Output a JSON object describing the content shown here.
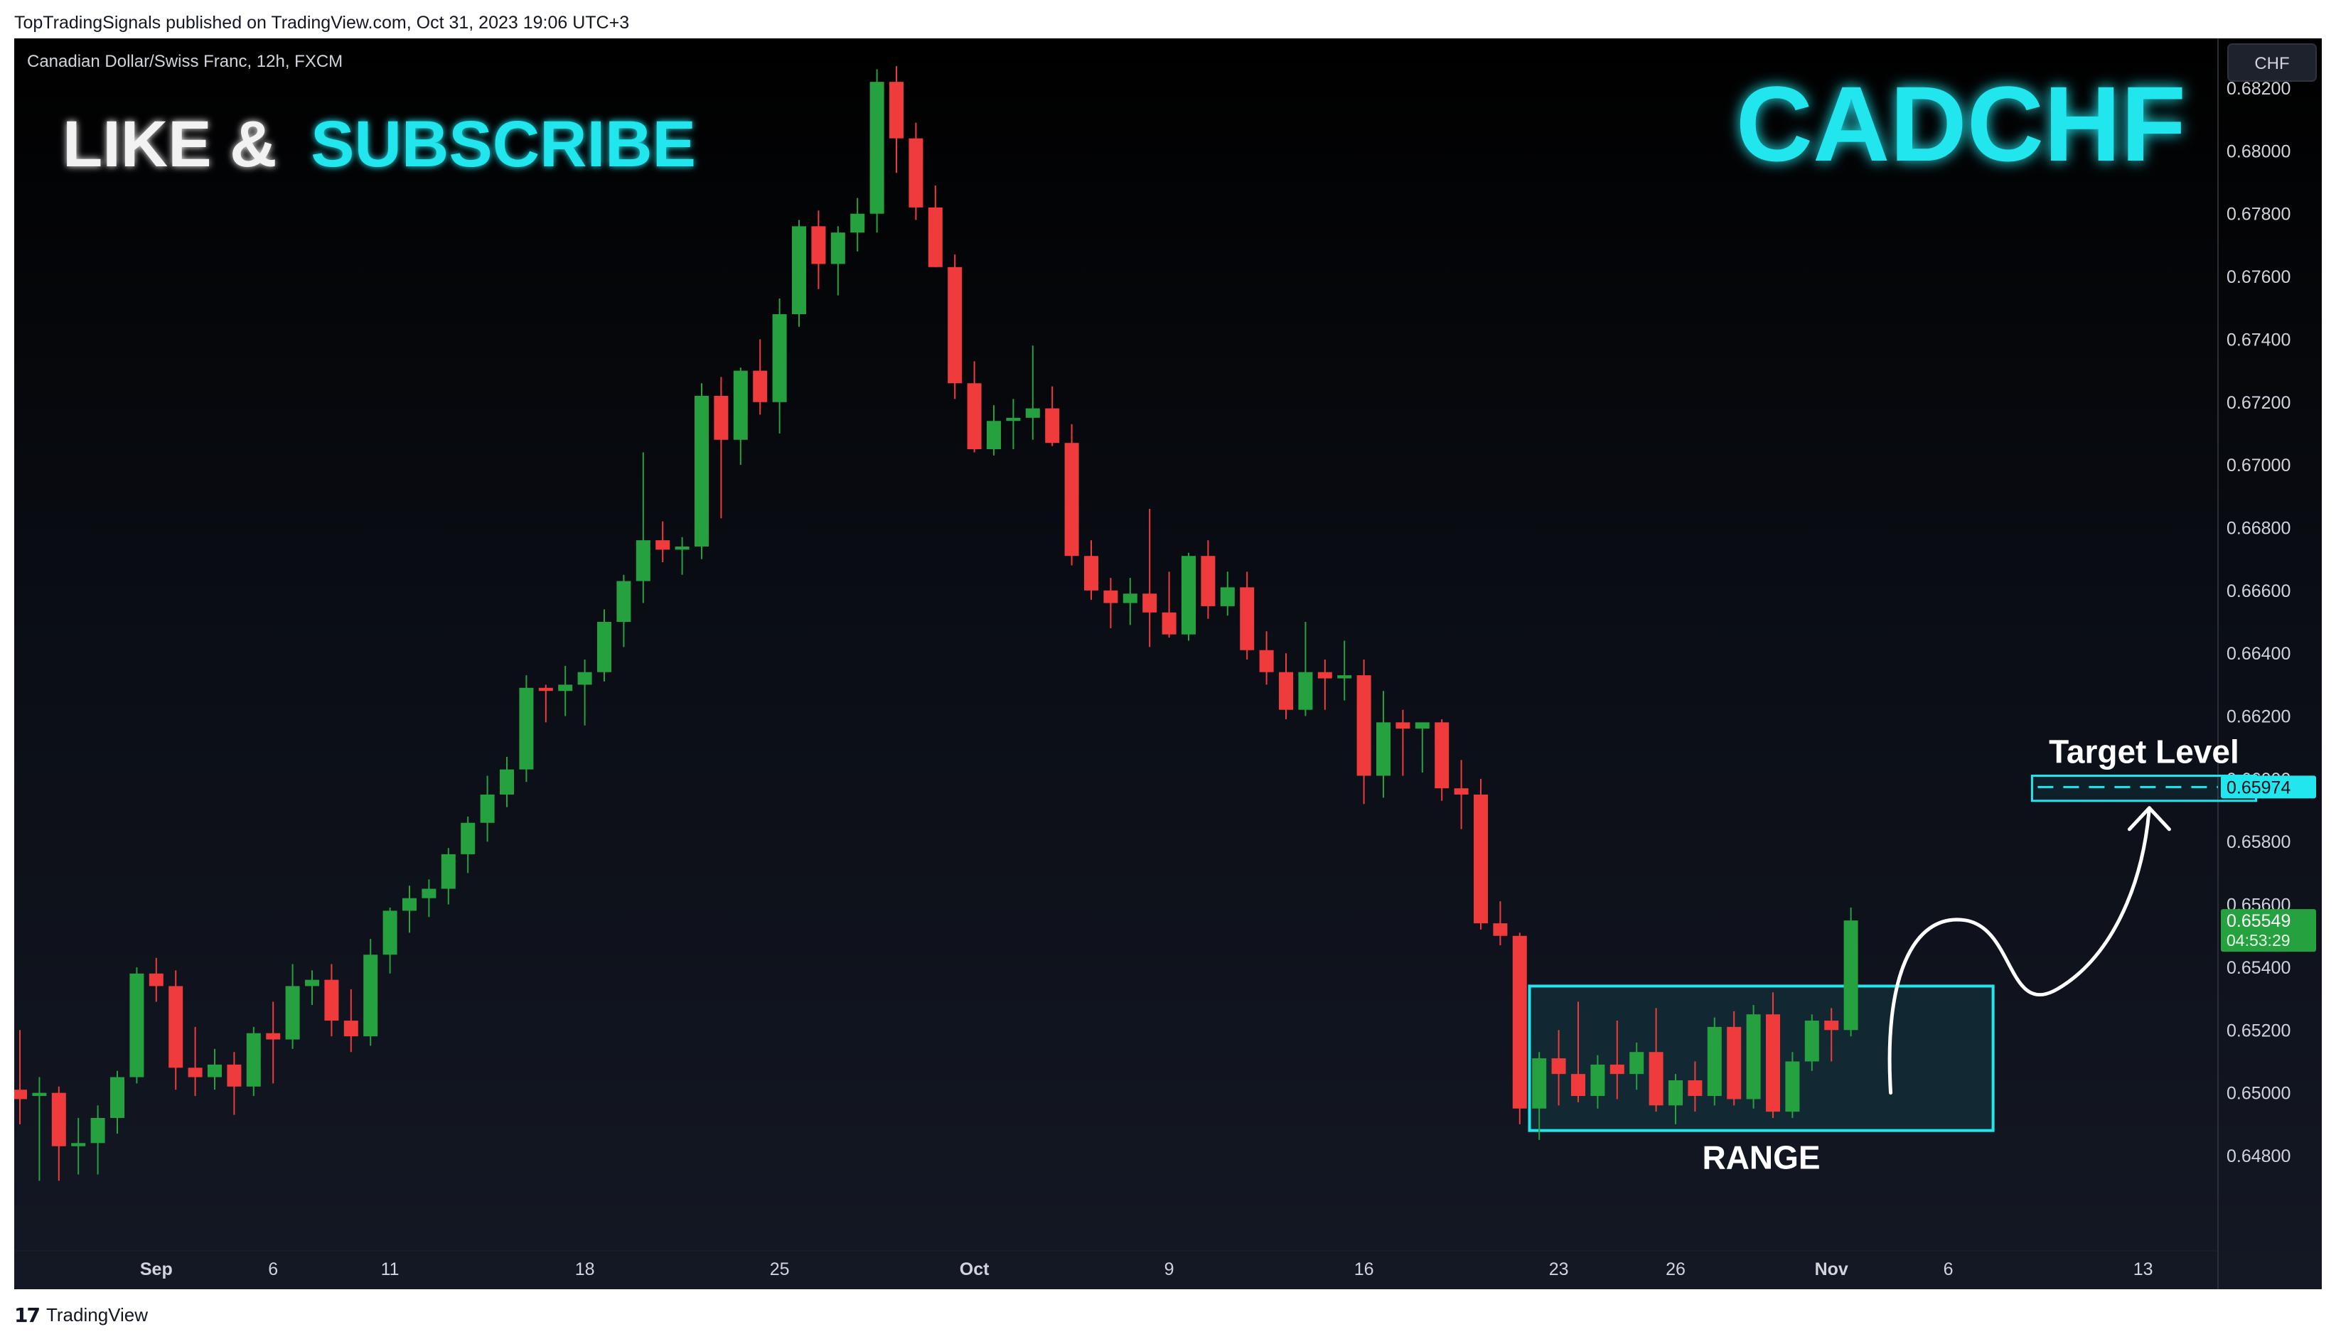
{
  "header": {
    "published_text": "TopTradingSignals published on TradingView.com, Oct 31, 2023 19:06 UTC+3"
  },
  "footer": {
    "logo_glyph": "17",
    "brand": "TradingView"
  },
  "chart": {
    "symbol_info": "Canadian Dollar/Swiss Franc, 12h, FXCM",
    "currency_button": "CHF",
    "promo_like": "LIKE &",
    "promo_subscribe": "SUBSCRIBE",
    "symbol_big": "CADCHF",
    "target_label": "Target Level",
    "range_label": "RANGE",
    "target_price_tag": "0.65974",
    "last_price_tag": "0.65549",
    "countdown_tag": "04:53:29"
  },
  "colors": {
    "up": "#26a13f",
    "down": "#ef3b3b",
    "accent": "#22e6ee",
    "promo_white": "#f2f2f2",
    "axis_text": "#d1d4dc",
    "last_price_bg": "#26a13f"
  },
  "chart_data": {
    "type": "candlestick",
    "interval": "12h",
    "symbol": "CADCHF",
    "ylim": [
      0.6468,
      0.683
    ],
    "y_ticks": [
      "0.68200",
      "0.68000",
      "0.67800",
      "0.67600",
      "0.67400",
      "0.67200",
      "0.67000",
      "0.66800",
      "0.66600",
      "0.66400",
      "0.66200",
      "0.66000",
      "0.65800",
      "0.65600",
      "0.65400",
      "0.65200",
      "0.65000",
      "0.64800"
    ],
    "x_ticks": [
      {
        "label": "Sep",
        "bar": 7,
        "bold": true
      },
      {
        "label": "6",
        "bar": 13,
        "bold": false
      },
      {
        "label": "11",
        "bar": 19,
        "bold": false
      },
      {
        "label": "18",
        "bar": 29,
        "bold": false
      },
      {
        "label": "25",
        "bar": 39,
        "bold": false
      },
      {
        "label": "Oct",
        "bar": 49,
        "bold": true
      },
      {
        "label": "9",
        "bar": 59,
        "bold": false
      },
      {
        "label": "16",
        "bar": 69,
        "bold": false
      },
      {
        "label": "23",
        "bar": 79,
        "bold": false
      },
      {
        "label": "26",
        "bar": 85,
        "bold": false
      },
      {
        "label": "Nov",
        "bar": 93,
        "bold": true
      },
      {
        "label": "6",
        "bar": 99,
        "bold": false
      },
      {
        "label": "13",
        "bar": 109,
        "bold": false
      }
    ],
    "candles": [
      {
        "o": 0.6501,
        "h": 0.652,
        "l": 0.649,
        "c": 0.6498
      },
      {
        "o": 0.6499,
        "h": 0.6505,
        "l": 0.6472,
        "c": 0.65
      },
      {
        "o": 0.65,
        "h": 0.6502,
        "l": 0.6472,
        "c": 0.6483
      },
      {
        "o": 0.6483,
        "h": 0.6492,
        "l": 0.6474,
        "c": 0.6484
      },
      {
        "o": 0.6484,
        "h": 0.6496,
        "l": 0.6474,
        "c": 0.6492
      },
      {
        "o": 0.6492,
        "h": 0.6507,
        "l": 0.6487,
        "c": 0.6505
      },
      {
        "o": 0.6505,
        "h": 0.654,
        "l": 0.6503,
        "c": 0.6538
      },
      {
        "o": 0.6538,
        "h": 0.6543,
        "l": 0.6529,
        "c": 0.6534
      },
      {
        "o": 0.6534,
        "h": 0.6539,
        "l": 0.6501,
        "c": 0.6508
      },
      {
        "o": 0.6508,
        "h": 0.6521,
        "l": 0.6499,
        "c": 0.6505
      },
      {
        "o": 0.6505,
        "h": 0.6514,
        "l": 0.6501,
        "c": 0.6509
      },
      {
        "o": 0.6509,
        "h": 0.6513,
        "l": 0.6493,
        "c": 0.6502
      },
      {
        "o": 0.6502,
        "h": 0.6521,
        "l": 0.6499,
        "c": 0.6519
      },
      {
        "o": 0.6519,
        "h": 0.6529,
        "l": 0.6503,
        "c": 0.6517
      },
      {
        "o": 0.6517,
        "h": 0.6541,
        "l": 0.6514,
        "c": 0.6534
      },
      {
        "o": 0.6534,
        "h": 0.6539,
        "l": 0.6528,
        "c": 0.6536
      },
      {
        "o": 0.6536,
        "h": 0.6541,
        "l": 0.6518,
        "c": 0.6523
      },
      {
        "o": 0.6523,
        "h": 0.6533,
        "l": 0.6513,
        "c": 0.6518
      },
      {
        "o": 0.6518,
        "h": 0.6549,
        "l": 0.6515,
        "c": 0.6544
      },
      {
        "o": 0.6544,
        "h": 0.6559,
        "l": 0.6538,
        "c": 0.6558
      },
      {
        "o": 0.6558,
        "h": 0.6566,
        "l": 0.6551,
        "c": 0.6562
      },
      {
        "o": 0.6562,
        "h": 0.6568,
        "l": 0.6556,
        "c": 0.6565
      },
      {
        "o": 0.6565,
        "h": 0.6578,
        "l": 0.656,
        "c": 0.6576
      },
      {
        "o": 0.6576,
        "h": 0.6588,
        "l": 0.657,
        "c": 0.6586
      },
      {
        "o": 0.6586,
        "h": 0.6601,
        "l": 0.658,
        "c": 0.6595
      },
      {
        "o": 0.6595,
        "h": 0.6607,
        "l": 0.6591,
        "c": 0.6603
      },
      {
        "o": 0.6603,
        "h": 0.6633,
        "l": 0.6599,
        "c": 0.6629
      },
      {
        "o": 0.6629,
        "h": 0.663,
        "l": 0.6618,
        "c": 0.6628
      },
      {
        "o": 0.6628,
        "h": 0.6636,
        "l": 0.662,
        "c": 0.663
      },
      {
        "o": 0.663,
        "h": 0.6638,
        "l": 0.6617,
        "c": 0.6634
      },
      {
        "o": 0.6634,
        "h": 0.6654,
        "l": 0.6631,
        "c": 0.665
      },
      {
        "o": 0.665,
        "h": 0.6665,
        "l": 0.6642,
        "c": 0.6663
      },
      {
        "o": 0.6663,
        "h": 0.6704,
        "l": 0.6656,
        "c": 0.6676
      },
      {
        "o": 0.6676,
        "h": 0.6682,
        "l": 0.6669,
        "c": 0.6673
      },
      {
        "o": 0.6673,
        "h": 0.6677,
        "l": 0.6665,
        "c": 0.6674
      },
      {
        "o": 0.6674,
        "h": 0.6726,
        "l": 0.667,
        "c": 0.6722
      },
      {
        "o": 0.6722,
        "h": 0.6728,
        "l": 0.6683,
        "c": 0.6708
      },
      {
        "o": 0.6708,
        "h": 0.6731,
        "l": 0.67,
        "c": 0.673
      },
      {
        "o": 0.673,
        "h": 0.674,
        "l": 0.6716,
        "c": 0.672
      },
      {
        "o": 0.672,
        "h": 0.6753,
        "l": 0.671,
        "c": 0.6748
      },
      {
        "o": 0.6748,
        "h": 0.6778,
        "l": 0.6744,
        "c": 0.6776
      },
      {
        "o": 0.6776,
        "h": 0.6781,
        "l": 0.6756,
        "c": 0.6764
      },
      {
        "o": 0.6764,
        "h": 0.6776,
        "l": 0.6754,
        "c": 0.6774
      },
      {
        "o": 0.6774,
        "h": 0.6785,
        "l": 0.6768,
        "c": 0.678
      },
      {
        "o": 0.678,
        "h": 0.6826,
        "l": 0.6774,
        "c": 0.6822
      },
      {
        "o": 0.6822,
        "h": 0.6827,
        "l": 0.6793,
        "c": 0.6804
      },
      {
        "o": 0.6804,
        "h": 0.6809,
        "l": 0.6778,
        "c": 0.6782
      },
      {
        "o": 0.6782,
        "h": 0.6789,
        "l": 0.6763,
        "c": 0.6763
      },
      {
        "o": 0.6763,
        "h": 0.6767,
        "l": 0.6721,
        "c": 0.6726
      },
      {
        "o": 0.6726,
        "h": 0.6733,
        "l": 0.6704,
        "c": 0.6705
      },
      {
        "o": 0.6705,
        "h": 0.6719,
        "l": 0.6703,
        "c": 0.6714
      },
      {
        "o": 0.6714,
        "h": 0.6721,
        "l": 0.6705,
        "c": 0.6715
      },
      {
        "o": 0.6715,
        "h": 0.6738,
        "l": 0.6708,
        "c": 0.6718
      },
      {
        "o": 0.6718,
        "h": 0.6725,
        "l": 0.6706,
        "c": 0.6707
      },
      {
        "o": 0.6707,
        "h": 0.6713,
        "l": 0.6668,
        "c": 0.6671
      },
      {
        "o": 0.6671,
        "h": 0.6676,
        "l": 0.6657,
        "c": 0.666
      },
      {
        "o": 0.666,
        "h": 0.6664,
        "l": 0.6648,
        "c": 0.6656
      },
      {
        "o": 0.6656,
        "h": 0.6664,
        "l": 0.6649,
        "c": 0.6659
      },
      {
        "o": 0.6659,
        "h": 0.6686,
        "l": 0.6642,
        "c": 0.6653
      },
      {
        "o": 0.6653,
        "h": 0.6666,
        "l": 0.6645,
        "c": 0.6646
      },
      {
        "o": 0.6646,
        "h": 0.6672,
        "l": 0.6644,
        "c": 0.6671
      },
      {
        "o": 0.6671,
        "h": 0.6676,
        "l": 0.6651,
        "c": 0.6655
      },
      {
        "o": 0.6655,
        "h": 0.6666,
        "l": 0.6652,
        "c": 0.6661
      },
      {
        "o": 0.6661,
        "h": 0.6666,
        "l": 0.6638,
        "c": 0.6641
      },
      {
        "o": 0.6641,
        "h": 0.6647,
        "l": 0.663,
        "c": 0.6634
      },
      {
        "o": 0.6634,
        "h": 0.664,
        "l": 0.6619,
        "c": 0.6622
      },
      {
        "o": 0.6622,
        "h": 0.665,
        "l": 0.662,
        "c": 0.6634
      },
      {
        "o": 0.6634,
        "h": 0.6638,
        "l": 0.6622,
        "c": 0.6632
      },
      {
        "o": 0.6632,
        "h": 0.6644,
        "l": 0.6625,
        "c": 0.6633
      },
      {
        "o": 0.6633,
        "h": 0.6638,
        "l": 0.6592,
        "c": 0.6601
      },
      {
        "o": 0.6601,
        "h": 0.6628,
        "l": 0.6594,
        "c": 0.6618
      },
      {
        "o": 0.6618,
        "h": 0.6622,
        "l": 0.6601,
        "c": 0.6616
      },
      {
        "o": 0.6616,
        "h": 0.6618,
        "l": 0.6602,
        "c": 0.6618
      },
      {
        "o": 0.6618,
        "h": 0.6619,
        "l": 0.6593,
        "c": 0.6597
      },
      {
        "o": 0.6597,
        "h": 0.6606,
        "l": 0.6584,
        "c": 0.6595
      },
      {
        "o": 0.6595,
        "h": 0.66,
        "l": 0.6552,
        "c": 0.6554
      },
      {
        "o": 0.6554,
        "h": 0.6561,
        "l": 0.6547,
        "c": 0.655
      },
      {
        "o": 0.655,
        "h": 0.6551,
        "l": 0.649,
        "c": 0.6495
      },
      {
        "o": 0.6495,
        "h": 0.6513,
        "l": 0.6485,
        "c": 0.6511
      },
      {
        "o": 0.6511,
        "h": 0.652,
        "l": 0.6496,
        "c": 0.6506
      },
      {
        "o": 0.6506,
        "h": 0.6529,
        "l": 0.6497,
        "c": 0.6499
      },
      {
        "o": 0.6499,
        "h": 0.6512,
        "l": 0.6495,
        "c": 0.6509
      },
      {
        "o": 0.6509,
        "h": 0.6523,
        "l": 0.6498,
        "c": 0.6506
      },
      {
        "o": 0.6506,
        "h": 0.6516,
        "l": 0.6501,
        "c": 0.6513
      },
      {
        "o": 0.6513,
        "h": 0.6527,
        "l": 0.6494,
        "c": 0.6496
      },
      {
        "o": 0.6496,
        "h": 0.6506,
        "l": 0.649,
        "c": 0.6504
      },
      {
        "o": 0.6504,
        "h": 0.651,
        "l": 0.6494,
        "c": 0.6499
      },
      {
        "o": 0.6499,
        "h": 0.6524,
        "l": 0.6496,
        "c": 0.6521
      },
      {
        "o": 0.6521,
        "h": 0.6526,
        "l": 0.6496,
        "c": 0.6498
      },
      {
        "o": 0.6498,
        "h": 0.6528,
        "l": 0.6495,
        "c": 0.6525
      },
      {
        "o": 0.6525,
        "h": 0.6532,
        "l": 0.6492,
        "c": 0.6494
      },
      {
        "o": 0.6494,
        "h": 0.6513,
        "l": 0.6492,
        "c": 0.651
      },
      {
        "o": 0.651,
        "h": 0.6525,
        "l": 0.6507,
        "c": 0.6523
      },
      {
        "o": 0.6523,
        "h": 0.6527,
        "l": 0.651,
        "c": 0.652
      },
      {
        "o": 0.652,
        "h": 0.6559,
        "l": 0.6518,
        "c": 0.65549
      }
    ],
    "range_box": {
      "bar_start": 77.5,
      "bar_end": 101.3,
      "price_low": 0.6488,
      "price_high": 0.6534
    },
    "target_level": {
      "price": 0.65974,
      "bar_start": 103.3,
      "bar_end": 114.8,
      "band_high": 0.6601,
      "band_low": 0.6593
    },
    "last_price": 0.65549
  }
}
